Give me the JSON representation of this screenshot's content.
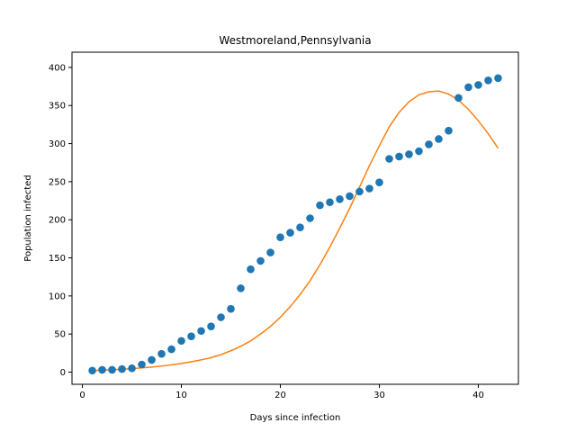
{
  "chart_data": {
    "type": "scatter+line",
    "title": "Westmoreland,Pennsylvania",
    "xlabel": "Days since infection",
    "ylabel": "Population infected",
    "xlim": [
      -1.05,
      44.05
    ],
    "ylim": [
      -16,
      420
    ],
    "xticks": [
      0,
      10,
      20,
      30,
      40
    ],
    "yticks": [
      0,
      50,
      100,
      150,
      200,
      250,
      300,
      350,
      400
    ],
    "grid": false,
    "legend": "none",
    "series": [
      {
        "kind": "scatter",
        "color": "#1f77b4",
        "points": [
          [
            1,
            2
          ],
          [
            2,
            3
          ],
          [
            3,
            3
          ],
          [
            4,
            4
          ],
          [
            5,
            5
          ],
          [
            6,
            10
          ],
          [
            7,
            16
          ],
          [
            8,
            24
          ],
          [
            9,
            30
          ],
          [
            10,
            41
          ],
          [
            11,
            47
          ],
          [
            12,
            54
          ],
          [
            13,
            60
          ],
          [
            14,
            72
          ],
          [
            15,
            83
          ],
          [
            16,
            110
          ],
          [
            17,
            135
          ],
          [
            18,
            146
          ],
          [
            19,
            157
          ],
          [
            20,
            177
          ],
          [
            21,
            183
          ],
          [
            22,
            190
          ],
          [
            23,
            202
          ],
          [
            24,
            219
          ],
          [
            25,
            223
          ],
          [
            26,
            227
          ],
          [
            27,
            231
          ],
          [
            28,
            237
          ],
          [
            29,
            241
          ],
          [
            30,
            249
          ],
          [
            31,
            280
          ],
          [
            32,
            283
          ],
          [
            33,
            286
          ],
          [
            34,
            290
          ],
          [
            35,
            299
          ],
          [
            36,
            306
          ],
          [
            37,
            317
          ],
          [
            38,
            360
          ],
          [
            39,
            374
          ],
          [
            40,
            377
          ],
          [
            41,
            383
          ],
          [
            42,
            386
          ]
        ]
      },
      {
        "kind": "line",
        "color": "#ff7f0e",
        "points": [
          [
            1,
            2
          ],
          [
            2,
            2.5
          ],
          [
            3,
            3
          ],
          [
            4,
            3.8
          ],
          [
            5,
            4.6
          ],
          [
            6,
            5.5
          ],
          [
            7,
            6.6
          ],
          [
            8,
            8
          ],
          [
            9,
            9.5
          ],
          [
            10,
            11.3
          ],
          [
            11,
            13.5
          ],
          [
            12,
            16
          ],
          [
            13,
            19
          ],
          [
            14,
            23
          ],
          [
            15,
            28
          ],
          [
            16,
            34
          ],
          [
            17,
            41
          ],
          [
            18,
            50
          ],
          [
            19,
            60
          ],
          [
            20,
            72
          ],
          [
            21,
            86
          ],
          [
            22,
            102
          ],
          [
            23,
            120
          ],
          [
            24,
            141
          ],
          [
            25,
            164
          ],
          [
            26,
            189
          ],
          [
            27,
            215
          ],
          [
            28,
            243
          ],
          [
            29,
            271
          ],
          [
            30,
            297
          ],
          [
            31,
            322
          ],
          [
            32,
            341
          ],
          [
            33,
            355
          ],
          [
            34,
            364
          ],
          [
            35,
            368
          ],
          [
            36,
            369
          ],
          [
            37,
            365
          ],
          [
            38,
            357
          ],
          [
            39,
            345
          ],
          [
            40,
            330
          ],
          [
            41,
            313
          ],
          [
            42,
            294
          ]
        ]
      }
    ]
  }
}
